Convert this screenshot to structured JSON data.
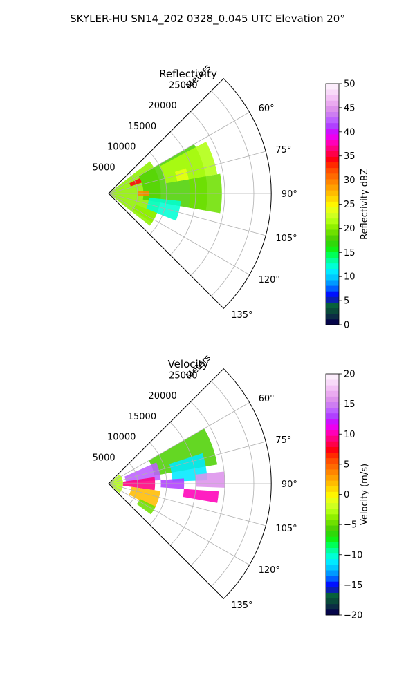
{
  "figure": {
    "suptitle": "SKYLER-HU  SN14_202  0328_0.045 UTC Elevation 20°"
  },
  "chart_data": [
    {
      "type": "heatmap",
      "subtype": "polar-sector",
      "title": "Reflectivity",
      "radial_axis": {
        "label": "Meters",
        "ticks": [
          5000,
          10000,
          15000,
          20000,
          25000
        ],
        "tick_labels": [
          "5000",
          "10000",
          "15000",
          "20000",
          "25000"
        ],
        "range": [
          0,
          28000
        ]
      },
      "angular_axis": {
        "range_deg": [
          45,
          135
        ],
        "ticks": [
          60,
          75,
          90,
          105,
          120,
          135
        ],
        "tick_labels": [
          "60°",
          "75°",
          "90°",
          "105°",
          "120°",
          "135°"
        ]
      },
      "grid": true,
      "colorbar": {
        "label": "Reflectivity dBZ",
        "range": [
          0,
          50
        ],
        "ticks": [
          0,
          5,
          10,
          15,
          20,
          25,
          30,
          35,
          40,
          45,
          50
        ],
        "tick_labels": [
          "0",
          "5",
          "10",
          "15",
          "20",
          "25",
          "30",
          "35",
          "40",
          "45",
          "50"
        ],
        "colors": [
          "#06064a",
          "#0c2c44",
          "#0a4a3a",
          "#07613a",
          "#0a1fb0",
          "#0011ff",
          "#005fff",
          "#0099ff",
          "#00c8ff",
          "#00eaff",
          "#00ffd4",
          "#00ff9c",
          "#00ff58",
          "#10f014",
          "#2fd80a",
          "#4ed104",
          "#6ee000",
          "#8ff000",
          "#b0ff10",
          "#cfff20",
          "#e8ff14",
          "#fff500",
          "#ffd800",
          "#ffbc00",
          "#ffa000",
          "#ff8500",
          "#ff6a00",
          "#ff4e00",
          "#ff2a00",
          "#ff0010",
          "#ff0048",
          "#ff0080",
          "#ff00b8",
          "#ee00ee",
          "#cc11ff",
          "#b040ff",
          "#bd60ff",
          "#cd7df2",
          "#dd92ec",
          "#eaaaf0",
          "#f3c2f6",
          "#f8daf9",
          "#fcedfc"
        ]
      },
      "echo_regions": [
        {
          "level": 20,
          "r": [
            0,
            9000
          ],
          "theta": [
            52,
            128
          ]
        },
        {
          "level": 18,
          "r": [
            6000,
            17000
          ],
          "theta": [
            60,
            100
          ]
        },
        {
          "level": 21,
          "r": [
            10000,
            19000
          ],
          "theta": [
            62,
            80
          ]
        },
        {
          "level": 19,
          "r": [
            14000,
            19500
          ],
          "theta": [
            80,
            100
          ]
        },
        {
          "level": 12,
          "r": [
            7000,
            12500
          ],
          "theta": [
            96,
            112
          ]
        },
        {
          "level": 34,
          "r": [
            4000,
            6000
          ],
          "theta": [
            64,
            72
          ]
        },
        {
          "level": 30,
          "r": [
            5000,
            7000
          ],
          "theta": [
            86,
            94
          ]
        },
        {
          "level": 24,
          "r": [
            12000,
            14000
          ],
          "theta": [
            72,
            80
          ]
        },
        {
          "level": 20,
          "r": [
            5000,
            9000
          ],
          "theta": [
            112,
            124
          ]
        }
      ]
    },
    {
      "type": "heatmap",
      "subtype": "polar-sector",
      "title": "Velocity",
      "radial_axis": {
        "label": "Meters",
        "ticks": [
          5000,
          10000,
          15000,
          20000,
          25000
        ],
        "tick_labels": [
          "5000",
          "10000",
          "15000",
          "20000",
          "25000"
        ],
        "range": [
          0,
          28000
        ]
      },
      "angular_axis": {
        "range_deg": [
          45,
          135
        ],
        "ticks": [
          60,
          75,
          90,
          105,
          120,
          135
        ],
        "tick_labels": [
          "60°",
          "75°",
          "90°",
          "105°",
          "120°",
          "135°"
        ]
      },
      "grid": true,
      "colorbar": {
        "label": "Velocity (m/s)",
        "range": [
          -20,
          20
        ],
        "ticks": [
          -20,
          -15,
          -10,
          -5,
          0,
          5,
          10,
          15,
          20
        ],
        "tick_labels": [
          "−20",
          "−15",
          "−10",
          "−5",
          "0",
          "5",
          "10",
          "15",
          "20"
        ],
        "colors": [
          "#06064a",
          "#0c2c44",
          "#0a4a3a",
          "#07613a",
          "#0a1fb0",
          "#0011ff",
          "#005fff",
          "#0099ff",
          "#00c8ff",
          "#00eaff",
          "#00ffd4",
          "#00ff9c",
          "#00ff58",
          "#10f014",
          "#2fd80a",
          "#4ed104",
          "#6ee000",
          "#8ff000",
          "#b0ff10",
          "#cfff20",
          "#e8ff14",
          "#fff500",
          "#ffd800",
          "#ffbc00",
          "#ffa000",
          "#ff8500",
          "#ff6a00",
          "#ff4e00",
          "#ff2a00",
          "#ff0010",
          "#ff0048",
          "#ff0080",
          "#ff00b8",
          "#ee00ee",
          "#cc11ff",
          "#b040ff",
          "#bd60ff",
          "#cd7df2",
          "#dd92ec",
          "#eaaaf0",
          "#f3c2f6",
          "#f8daf9",
          "#fcedfc"
        ]
      },
      "echo_regions": [
        {
          "level": -3,
          "r": [
            0,
            2500
          ],
          "theta": [
            50,
            130
          ]
        },
        {
          "level": -6,
          "r": [
            8000,
            19000
          ],
          "theta": [
            60,
            80
          ]
        },
        {
          "level": -11,
          "r": [
            11000,
            17000
          ],
          "theta": [
            72,
            88
          ]
        },
        {
          "level": 14,
          "r": [
            3000,
            9000
          ],
          "theta": [
            66,
            86
          ]
        },
        {
          "level": 9,
          "r": [
            2500,
            8000
          ],
          "theta": [
            82,
            98
          ]
        },
        {
          "level": 2,
          "r": [
            4000,
            9000
          ],
          "theta": [
            98,
            118
          ]
        },
        {
          "level": 13,
          "r": [
            9000,
            13000
          ],
          "theta": [
            86,
            94
          ]
        },
        {
          "level": 10,
          "r": [
            13000,
            19000
          ],
          "theta": [
            94,
            100
          ]
        },
        {
          "level": 16,
          "r": [
            15000,
            20000
          ],
          "theta": [
            84,
            92
          ]
        },
        {
          "level": -5,
          "r": [
            6000,
            9000
          ],
          "theta": [
            116,
            126
          ]
        }
      ]
    }
  ]
}
